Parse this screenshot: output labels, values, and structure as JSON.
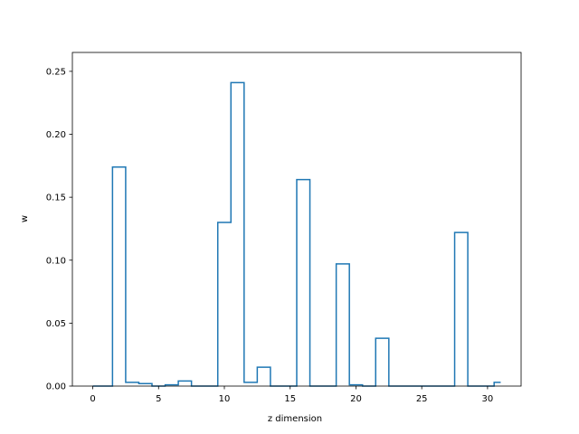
{
  "chart_data": {
    "type": "step",
    "title": "",
    "xlabel": "z dimension",
    "ylabel": "w",
    "xlim": [
      -1.55,
      32.55
    ],
    "ylim": [
      0,
      0.265
    ],
    "xticks": [
      0,
      5,
      10,
      15,
      20,
      25,
      30
    ],
    "yticks": [
      0.0,
      0.05,
      0.1,
      0.15,
      0.2,
      0.25
    ],
    "ytick_labels": [
      "0.00",
      "0.05",
      "0.10",
      "0.15",
      "0.20",
      "0.25"
    ],
    "series": [
      {
        "color": "#1f77b4",
        "x": [
          0,
          1,
          2,
          3,
          4,
          5,
          6,
          7,
          8,
          9,
          10,
          11,
          12,
          13,
          14,
          15,
          16,
          17,
          18,
          19,
          20,
          21,
          22,
          23,
          24,
          25,
          26,
          27,
          28,
          29,
          30,
          31
        ],
        "values": [
          0.0,
          0.0,
          0.174,
          0.003,
          0.002,
          0.0,
          0.001,
          0.004,
          0.0,
          0.0,
          0.13,
          0.241,
          0.003,
          0.015,
          0.0,
          0.0,
          0.164,
          0.0,
          0.0,
          0.097,
          0.001,
          0.0,
          0.038,
          0.0,
          0.0,
          0.0,
          0.0,
          0.0,
          0.122,
          0.0,
          0.0,
          0.003
        ]
      }
    ],
    "grid": false
  }
}
